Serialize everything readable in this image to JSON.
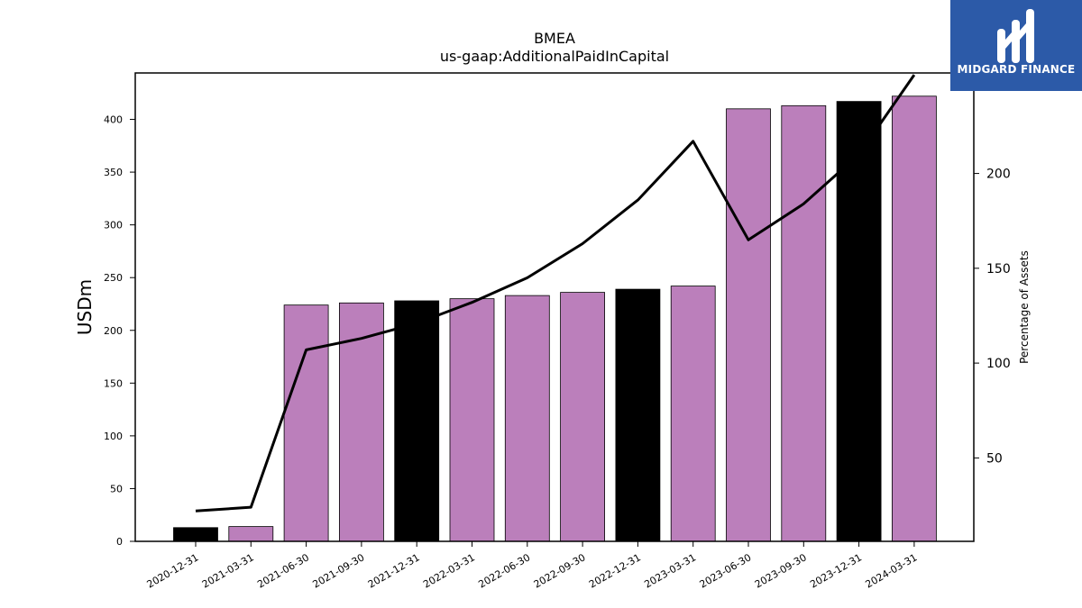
{
  "chart_data": {
    "type": "bar",
    "title": "BMEA",
    "subtitle": "us-gaap:AdditionalPaidInCapital",
    "ylabel": "USDm",
    "y2label": "Percentage of Assets",
    "categories": [
      "2020-12-31",
      "2021-03-31",
      "2021-06-30",
      "2021-09-30",
      "2021-12-31",
      "2022-03-31",
      "2022-06-30",
      "2022-09-30",
      "2022-12-31",
      "2023-03-31",
      "2023-06-30",
      "2023-09-30",
      "2023-12-31",
      "2024-03-31"
    ],
    "series": [
      {
        "type": "bar",
        "values": [
          13,
          14,
          224,
          226,
          228,
          230,
          233,
          236,
          239,
          242,
          410,
          413,
          417,
          422
        ],
        "colors": [
          "#000000",
          "#bb7fbb",
          "#bb7fbb",
          "#bb7fbb",
          "#000000",
          "#bb7fbb",
          "#bb7fbb",
          "#bb7fbb",
          "#000000",
          "#bb7fbb",
          "#bb7fbb",
          "#bb7fbb",
          "#000000",
          "#bb7fbb"
        ]
      },
      {
        "type": "line",
        "axis": "right",
        "color": "#000000",
        "values": [
          22,
          24,
          107,
          113,
          121,
          132,
          145,
          163,
          186,
          217,
          165,
          184,
          210,
          252
        ]
      }
    ],
    "ylim": [
      0,
      444
    ],
    "yticks": [
      0,
      50,
      100,
      150,
      200,
      250,
      300,
      350,
      400
    ],
    "y2lim": [
      6,
      253
    ],
    "y2ticks": [
      50,
      100,
      150,
      200
    ],
    "legend": "none",
    "grid": false
  },
  "logo": {
    "text": "MIDGARD FINANCE"
  }
}
